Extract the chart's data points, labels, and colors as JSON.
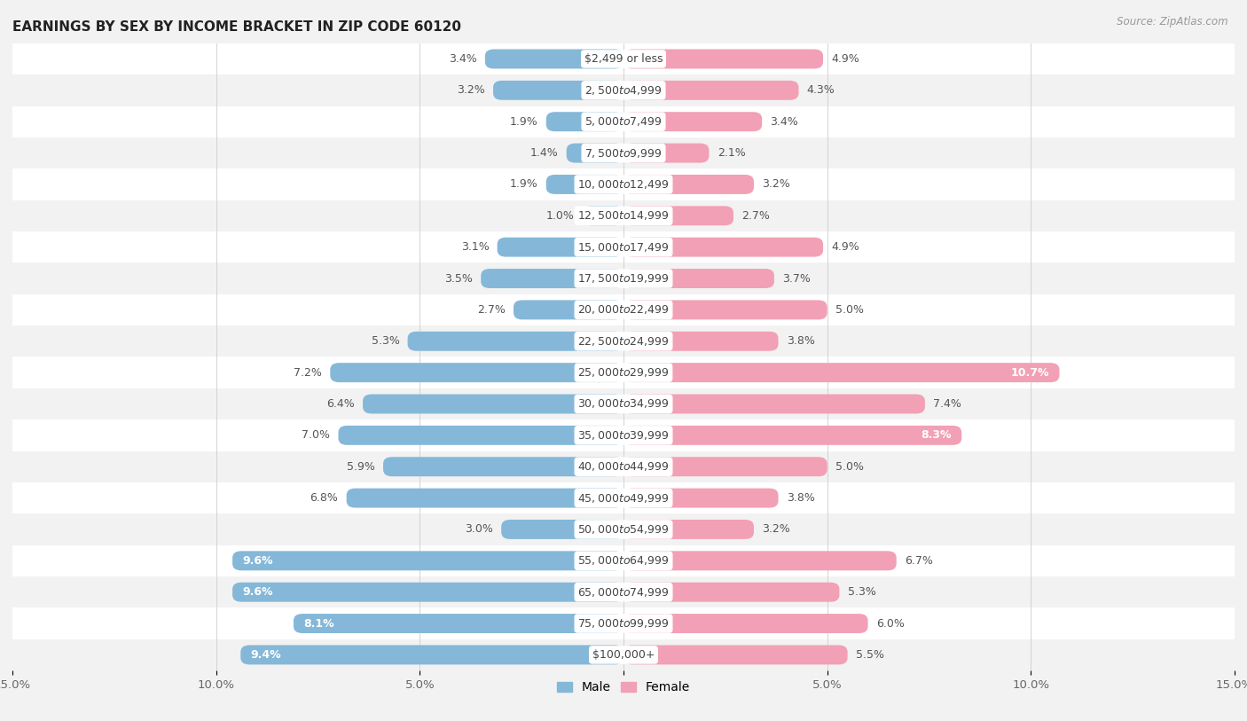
{
  "title": "EARNINGS BY SEX BY INCOME BRACKET IN ZIP CODE 60120",
  "source": "Source: ZipAtlas.com",
  "categories": [
    "$2,499 or less",
    "$2,500 to $4,999",
    "$5,000 to $7,499",
    "$7,500 to $9,999",
    "$10,000 to $12,499",
    "$12,500 to $14,999",
    "$15,000 to $17,499",
    "$17,500 to $19,999",
    "$20,000 to $22,499",
    "$22,500 to $24,999",
    "$25,000 to $29,999",
    "$30,000 to $34,999",
    "$35,000 to $39,999",
    "$40,000 to $44,999",
    "$45,000 to $49,999",
    "$50,000 to $54,999",
    "$55,000 to $64,999",
    "$65,000 to $74,999",
    "$75,000 to $99,999",
    "$100,000+"
  ],
  "male_values": [
    3.4,
    3.2,
    1.9,
    1.4,
    1.9,
    1.0,
    3.1,
    3.5,
    2.7,
    5.3,
    7.2,
    6.4,
    7.0,
    5.9,
    6.8,
    3.0,
    9.6,
    9.6,
    8.1,
    9.4
  ],
  "female_values": [
    4.9,
    4.3,
    3.4,
    2.1,
    3.2,
    2.7,
    4.9,
    3.7,
    5.0,
    3.8,
    10.7,
    7.4,
    8.3,
    5.0,
    3.8,
    3.2,
    6.7,
    5.3,
    6.0,
    5.5
  ],
  "male_color": "#85b8d8",
  "female_color": "#f2a0b5",
  "background_row_odd": "#f2f2f2",
  "background_row_even": "#ffffff",
  "xlim": 15.0,
  "label_fontsize": 9.0,
  "title_fontsize": 11.0,
  "axis_tick_fontsize": 9.5,
  "cat_label_fontsize": 9.0,
  "male_inside_threshold": 8.0,
  "female_inside_threshold": 8.0
}
